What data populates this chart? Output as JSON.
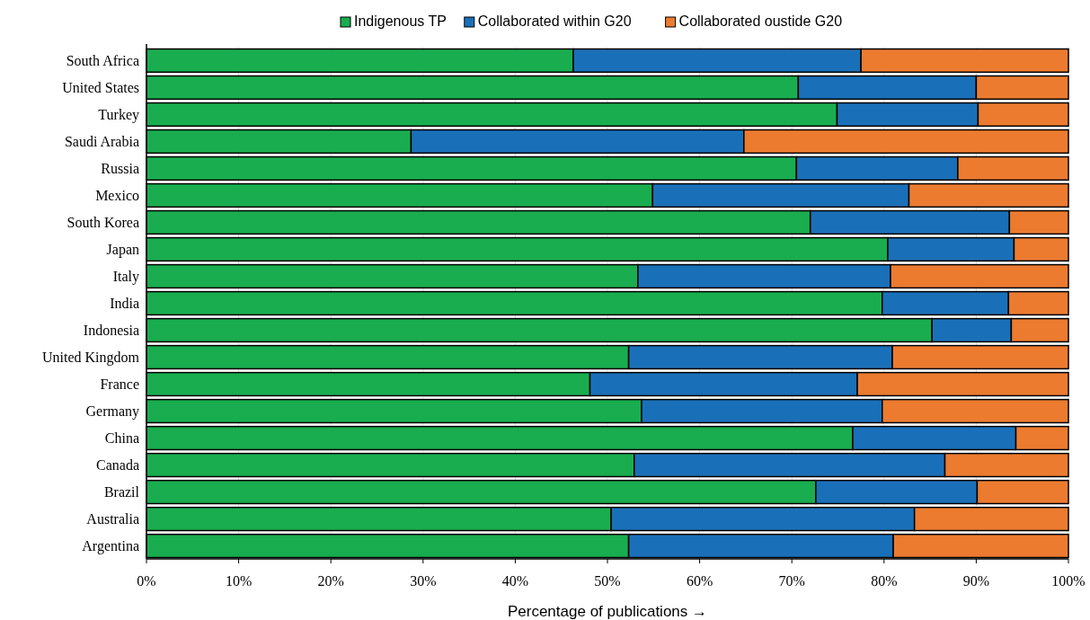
{
  "chart_data": {
    "type": "bar",
    "orientation": "horizontal",
    "stacked": true,
    "xlabel": "Percentage of publications →",
    "categories": [
      "South Africa",
      "United States",
      "Turkey",
      "Saudi Arabia",
      "Russia",
      "Mexico",
      "South Korea",
      "Japan",
      "Italy",
      "India",
      "Indonesia",
      "United Kingdom",
      "France",
      "Germany",
      "China",
      "Canada",
      "Brazil",
      "Australia",
      "Argentina"
    ],
    "series": [
      {
        "name": "Indigenous TP",
        "color": "#19ad4f",
        "values": [
          46.3,
          70.7,
          74.9,
          28.7,
          70.5,
          54.9,
          72.0,
          80.4,
          53.3,
          79.8,
          85.2,
          52.3,
          48.1,
          53.7,
          76.6,
          52.9,
          72.6,
          50.4,
          52.3
        ]
      },
      {
        "name": "Collaborated within G20",
        "color": "#1a70b8",
        "values": [
          31.2,
          19.3,
          15.3,
          36.1,
          17.5,
          27.8,
          21.6,
          13.7,
          27.4,
          13.7,
          8.6,
          28.6,
          29.0,
          26.1,
          17.7,
          33.7,
          17.5,
          32.9,
          28.7
        ]
      },
      {
        "name": "Collaborated oustide G20",
        "color": "#ec7b30",
        "values": [
          22.5,
          10.0,
          9.8,
          35.2,
          12.0,
          17.3,
          6.4,
          5.9,
          19.3,
          6.5,
          6.2,
          19.1,
          22.9,
          20.2,
          5.7,
          13.4,
          9.9,
          16.7,
          19.0
        ]
      }
    ],
    "xlim": [
      0,
      100
    ],
    "xticks": [
      {
        "value": 0,
        "label": "0%"
      },
      {
        "value": 10,
        "label": "10%"
      },
      {
        "value": 20,
        "label": "20%"
      },
      {
        "value": 30,
        "label": "30%"
      },
      {
        "value": 40,
        "label": "40%"
      },
      {
        "value": 50,
        "label": "50%"
      },
      {
        "value": 60,
        "label": "60%"
      },
      {
        "value": 70,
        "label": "70%"
      },
      {
        "value": 80,
        "label": "80%"
      },
      {
        "value": 90,
        "label": "90%"
      },
      {
        "value": 100,
        "label": "100%"
      }
    ],
    "grid": "x",
    "legend": "top"
  }
}
